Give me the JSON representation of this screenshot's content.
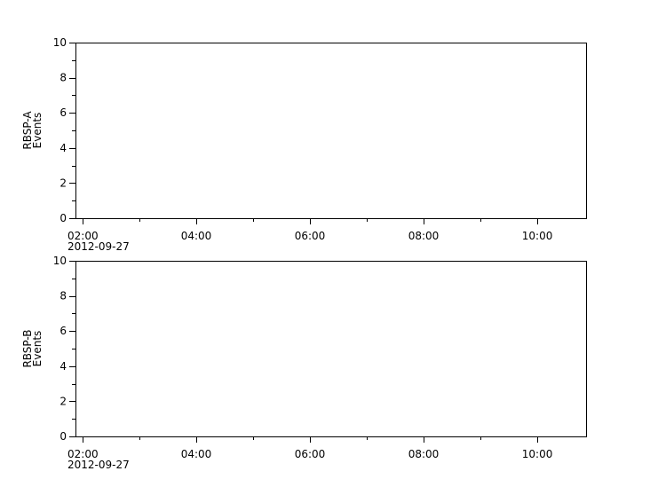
{
  "chart_data": [
    {
      "type": "line",
      "ylabel": [
        "RBSP-A",
        "Events"
      ],
      "ylim": [
        0,
        10
      ],
      "yticks": [
        "0",
        "2",
        "4",
        "6",
        "8",
        "10"
      ],
      "xlim": [
        "01:52:30",
        "10:51:30"
      ],
      "xticks": [
        "02:00",
        "04:00",
        "06:00",
        "08:00",
        "10:00"
      ],
      "date_label": "2012-09-27",
      "series": []
    },
    {
      "type": "line",
      "ylabel": [
        "RBSP-B",
        "Events"
      ],
      "ylim": [
        0,
        10
      ],
      "yticks": [
        "0",
        "2",
        "4",
        "6",
        "8",
        "10"
      ],
      "xlim": [
        "01:52:30",
        "10:51:30"
      ],
      "xticks": [
        "02:00",
        "04:00",
        "06:00",
        "08:00",
        "10:00"
      ],
      "date_label": "2012-09-27",
      "series": []
    }
  ]
}
